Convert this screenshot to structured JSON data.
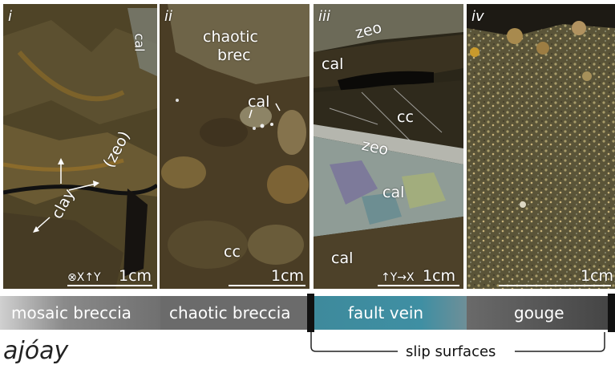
{
  "panels": [
    {
      "numeral": "i",
      "labels": {
        "cal": "cal",
        "zeo": "(zeo)",
        "clay": "clay"
      },
      "orientation": "⊗X↑Y",
      "scale": "1cm"
    },
    {
      "numeral": "ii",
      "labels": {
        "chaotic": "chaotic",
        "brec": "brec",
        "cal": "cal",
        "cc": "cc"
      },
      "scale": "1cm"
    },
    {
      "numeral": "iii",
      "labels": {
        "zeo_top": "zeo",
        "cal_top": "cal",
        "cc": "cc",
        "zeo_mid": "zeo",
        "cal_mid": "cal",
        "cal_bottom": "cal"
      },
      "orientation": "↑Y→X",
      "scale": "1cm"
    },
    {
      "numeral": "iv",
      "scale": "1cm"
    }
  ],
  "zones": [
    {
      "label": "mosaic breccia"
    },
    {
      "label": "chaotic breccia"
    },
    {
      "label": "fault vein"
    },
    {
      "label": "gouge"
    }
  ],
  "bracket_label": "slip surfaces",
  "footer_text": "ajóay",
  "colors": {
    "fault_vein": "#3e8a9c",
    "breccia_bar": "#6e6e6e",
    "gouge_bar": "#444444"
  }
}
